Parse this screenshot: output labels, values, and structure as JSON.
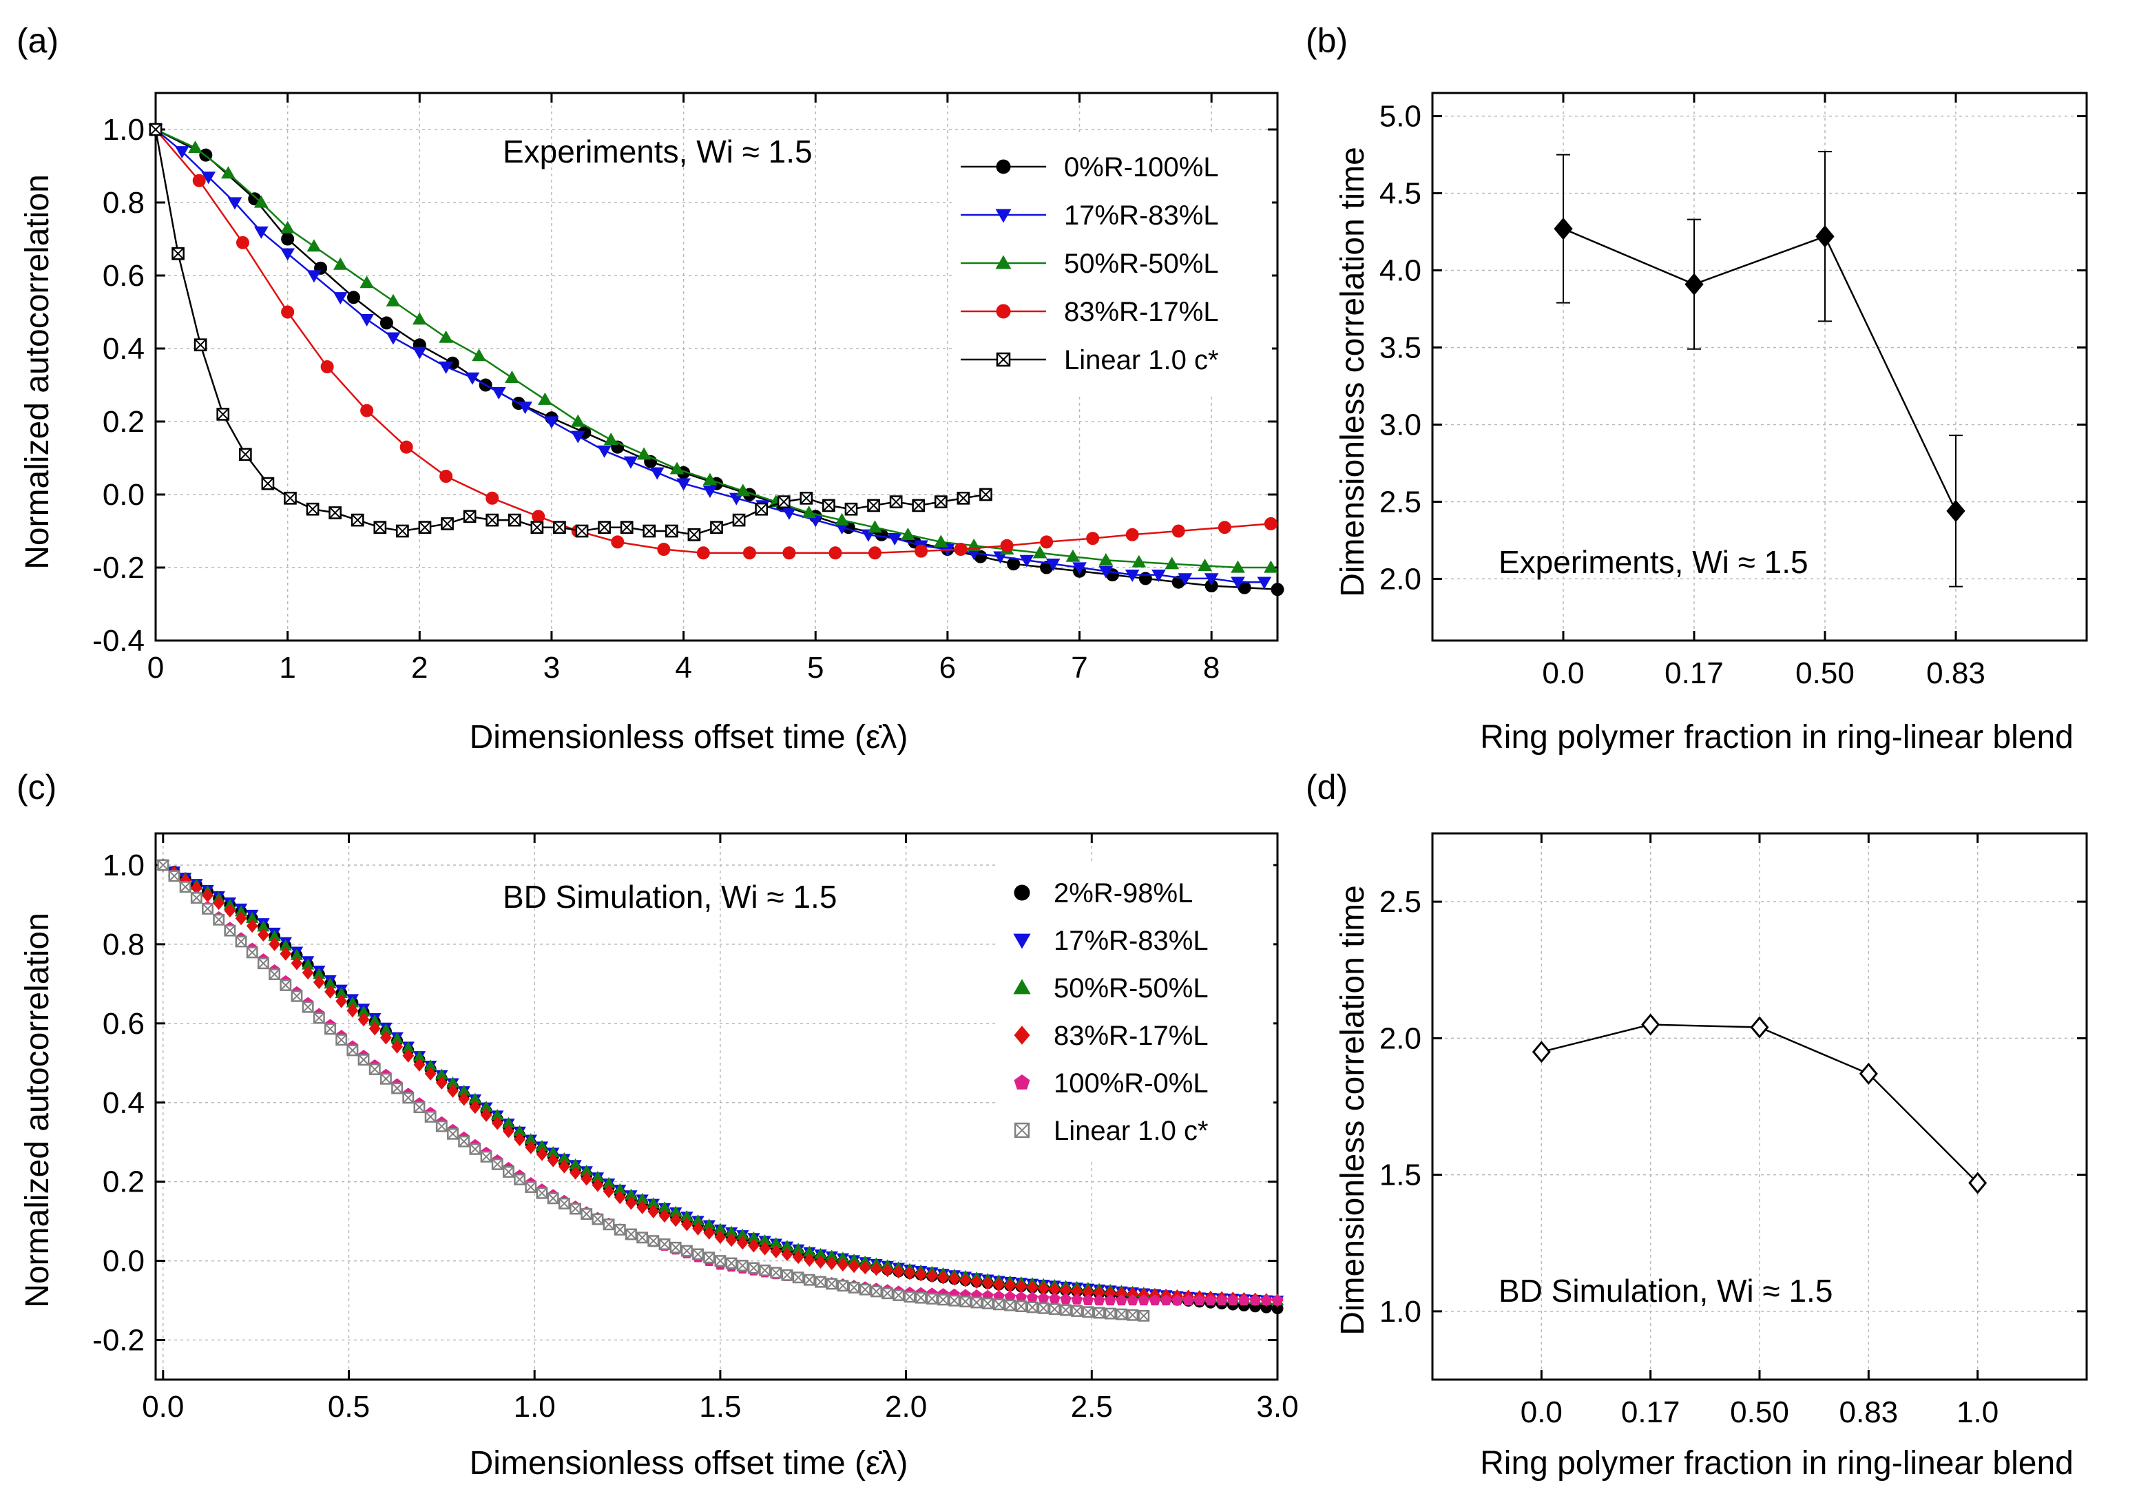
{
  "chart_data": [
    {
      "id": "a",
      "type": "line",
      "panel_label": "(a)",
      "annotation": "Experiments, Wi ≈ 1.5",
      "xlabel": "Dimensionless offset time (ε̇λ)",
      "ylabel": "Normalized autocorrelation",
      "xlim": [
        0,
        8.5
      ],
      "ylim": [
        -0.4,
        1.1
      ],
      "xticks": [
        0,
        1,
        2,
        3,
        4,
        5,
        6,
        7,
        8
      ],
      "xtick_labels": [
        "0",
        "1",
        "2",
        "3",
        "4",
        "5",
        "6",
        "7",
        "8"
      ],
      "yticks": [
        -0.4,
        -0.2,
        0.0,
        0.2,
        0.4,
        0.6,
        0.8,
        1.0
      ],
      "ytick_labels": [
        "-0.4",
        "-0.2",
        "0.0",
        "0.2",
        "0.4",
        "0.6",
        "0.8",
        "1.0"
      ],
      "grid": true,
      "legend_position": "top-right",
      "series": [
        {
          "name": "0%R-100%L",
          "color": "#000000",
          "marker": "circle",
          "line": true,
          "x": [
            0,
            0.38,
            0.75,
            1.0,
            1.25,
            1.5,
            1.75,
            2.0,
            2.25,
            2.5,
            2.75,
            3.0,
            3.25,
            3.5,
            3.75,
            4.0,
            4.25,
            4.5,
            4.75,
            5.0,
            5.25,
            5.5,
            5.75,
            6.0,
            6.25,
            6.5,
            6.75,
            7.0,
            7.25,
            7.5,
            7.75,
            8.0,
            8.25,
            8.5
          ],
          "y": [
            1.0,
            0.93,
            0.81,
            0.7,
            0.62,
            0.54,
            0.47,
            0.41,
            0.36,
            0.3,
            0.25,
            0.21,
            0.17,
            0.13,
            0.09,
            0.06,
            0.03,
            0.0,
            -0.03,
            -0.06,
            -0.09,
            -0.11,
            -0.13,
            -0.15,
            -0.17,
            -0.19,
            -0.2,
            -0.21,
            -0.22,
            -0.23,
            -0.24,
            -0.25,
            -0.255,
            -0.26
          ]
        },
        {
          "name": "17%R-83%L",
          "color": "#1010e0",
          "marker": "triangle-down",
          "line": true,
          "x": [
            0,
            0.2,
            0.4,
            0.6,
            0.8,
            1.0,
            1.2,
            1.4,
            1.6,
            1.8,
            2.0,
            2.2,
            2.4,
            2.6,
            2.8,
            3.0,
            3.2,
            3.4,
            3.6,
            3.8,
            4.0,
            4.2,
            4.4,
            4.6,
            4.8,
            5.0,
            5.2,
            5.4,
            5.6,
            5.8,
            6.0,
            6.2,
            6.4,
            6.6,
            6.8,
            7.0,
            7.2,
            7.4,
            7.6,
            7.8,
            8.0,
            8.2,
            8.4
          ],
          "y": [
            1.0,
            0.94,
            0.87,
            0.8,
            0.72,
            0.66,
            0.6,
            0.54,
            0.48,
            0.43,
            0.39,
            0.35,
            0.32,
            0.28,
            0.24,
            0.2,
            0.16,
            0.12,
            0.09,
            0.06,
            0.03,
            0.01,
            -0.01,
            -0.03,
            -0.05,
            -0.07,
            -0.09,
            -0.11,
            -0.12,
            -0.14,
            -0.15,
            -0.16,
            -0.17,
            -0.18,
            -0.19,
            -0.2,
            -0.21,
            -0.22,
            -0.22,
            -0.23,
            -0.23,
            -0.24,
            -0.24
          ]
        },
        {
          "name": "50%R-50%L",
          "color": "#108010",
          "marker": "triangle-up",
          "line": true,
          "x": [
            0,
            0.3,
            0.55,
            0.8,
            1.0,
            1.2,
            1.4,
            1.6,
            1.8,
            2.0,
            2.2,
            2.45,
            2.7,
            2.95,
            3.2,
            3.45,
            3.7,
            3.95,
            4.2,
            4.45,
            4.7,
            4.95,
            5.2,
            5.45,
            5.7,
            5.95,
            6.2,
            6.45,
            6.7,
            6.95,
            7.2,
            7.45,
            7.7,
            7.95,
            8.2,
            8.45
          ],
          "y": [
            1.0,
            0.95,
            0.88,
            0.8,
            0.73,
            0.68,
            0.63,
            0.58,
            0.53,
            0.48,
            0.43,
            0.38,
            0.32,
            0.26,
            0.2,
            0.15,
            0.11,
            0.07,
            0.04,
            0.01,
            -0.02,
            -0.05,
            -0.07,
            -0.09,
            -0.11,
            -0.13,
            -0.14,
            -0.15,
            -0.16,
            -0.17,
            -0.18,
            -0.185,
            -0.19,
            -0.195,
            -0.2,
            -0.2
          ]
        },
        {
          "name": "83%R-17%L",
          "color": "#e01010",
          "marker": "circle",
          "line": true,
          "x": [
            0,
            0.33,
            0.66,
            1.0,
            1.3,
            1.6,
            1.9,
            2.2,
            2.55,
            2.9,
            3.2,
            3.5,
            3.85,
            4.15,
            4.5,
            4.8,
            5.15,
            5.45,
            5.8,
            6.1,
            6.45,
            6.75,
            7.1,
            7.4,
            7.75,
            8.1,
            8.45
          ],
          "y": [
            1.0,
            0.86,
            0.69,
            0.5,
            0.35,
            0.23,
            0.13,
            0.05,
            -0.01,
            -0.06,
            -0.1,
            -0.13,
            -0.15,
            -0.16,
            -0.16,
            -0.16,
            -0.16,
            -0.16,
            -0.155,
            -0.15,
            -0.14,
            -0.13,
            -0.12,
            -0.11,
            -0.1,
            -0.09,
            -0.08
          ]
        },
        {
          "name": "Linear 1.0 c*",
          "color": "#000000",
          "marker": "boxed-x",
          "line": true,
          "x": [
            0,
            0.17,
            0.34,
            0.51,
            0.68,
            0.85,
            1.02,
            1.19,
            1.36,
            1.53,
            1.7,
            1.87,
            2.04,
            2.21,
            2.38,
            2.55,
            2.72,
            2.89,
            3.06,
            3.23,
            3.4,
            3.57,
            3.74,
            3.91,
            4.08,
            4.25,
            4.42,
            4.59,
            4.76,
            4.93,
            5.1,
            5.27,
            5.44,
            5.61,
            5.78,
            5.95,
            6.12,
            6.29
          ],
          "y": [
            1.0,
            0.66,
            0.41,
            0.22,
            0.11,
            0.03,
            -0.01,
            -0.04,
            -0.05,
            -0.07,
            -0.09,
            -0.1,
            -0.09,
            -0.08,
            -0.06,
            -0.07,
            -0.07,
            -0.09,
            -0.09,
            -0.1,
            -0.09,
            -0.09,
            -0.1,
            -0.1,
            -0.11,
            -0.09,
            -0.07,
            -0.04,
            -0.02,
            -0.01,
            -0.03,
            -0.04,
            -0.03,
            -0.02,
            -0.03,
            -0.02,
            -0.01,
            0.0
          ]
        }
      ]
    },
    {
      "id": "b",
      "type": "line",
      "panel_label": "(b)",
      "annotation": "Experiments, Wi ≈ 1.5",
      "xlabel": "Ring polymer fraction in ring-linear blend",
      "ylabel": "Dimensionless correlation time",
      "categories": [
        "0.0",
        "0.17",
        "0.50",
        "0.83"
      ],
      "ylim": [
        1.6,
        5.15
      ],
      "yticks": [
        2.0,
        2.5,
        3.0,
        3.5,
        4.0,
        4.5,
        5.0
      ],
      "ytick_labels": [
        "2.0",
        "2.5",
        "3.0",
        "3.5",
        "4.0",
        "4.5",
        "5.0"
      ],
      "grid": true,
      "series": [
        {
          "name": "Experiments",
          "color": "#000000",
          "marker": "filled-diamond",
          "values": [
            4.27,
            3.91,
            4.22,
            2.44
          ],
          "errors": [
            0.48,
            0.42,
            0.55,
            0.49
          ]
        }
      ]
    },
    {
      "id": "c",
      "type": "scatter",
      "panel_label": "(c)",
      "annotation": "BD Simulation, Wi ≈ 1.5",
      "xlabel": "Dimensionless offset time (ε̇λ)",
      "ylabel": "Normalized autocorrelation",
      "xlim": [
        -0.02,
        3.0
      ],
      "ylim": [
        -0.3,
        1.08
      ],
      "xticks": [
        0.0,
        0.5,
        1.0,
        1.5,
        2.0,
        2.5,
        3.0
      ],
      "xtick_labels": [
        "0.0",
        "0.5",
        "1.0",
        "1.5",
        "2.0",
        "2.5",
        "3.0"
      ],
      "yticks": [
        -0.2,
        0.0,
        0.2,
        0.4,
        0.6,
        0.8,
        1.0
      ],
      "ytick_labels": [
        "-0.2",
        "0.0",
        "0.2",
        "0.4",
        "0.6",
        "0.8",
        "1.0"
      ],
      "grid": true,
      "legend_position": "top-right",
      "series": [
        {
          "name": "2%R-98%L",
          "color": "#000000",
          "marker": "circle",
          "x": [
            0.0,
            0.25,
            0.5,
            0.75,
            1.0,
            1.25,
            1.5,
            1.75,
            2.0,
            2.25,
            2.5,
            2.75,
            3.0
          ],
          "y": [
            1.0,
            0.86,
            0.66,
            0.46,
            0.29,
            0.16,
            0.07,
            0.01,
            -0.03,
            -0.06,
            -0.08,
            -0.1,
            -0.12
          ]
        },
        {
          "name": "17%R-83%L",
          "color": "#1010e0",
          "marker": "triangle-down",
          "x": [
            0.0,
            0.25,
            0.5,
            0.75,
            1.0,
            1.25,
            1.5,
            1.75,
            2.0,
            2.25,
            2.5,
            2.75,
            3.0
          ],
          "y": [
            1.0,
            0.87,
            0.67,
            0.47,
            0.3,
            0.17,
            0.08,
            0.02,
            -0.02,
            -0.05,
            -0.07,
            -0.09,
            -0.1
          ]
        },
        {
          "name": "50%R-50%L",
          "color": "#108010",
          "marker": "triangle-up",
          "x": [
            0.0,
            0.25,
            0.5,
            0.75,
            1.0,
            1.25,
            1.5,
            1.75,
            2.0,
            2.25,
            2.5,
            2.75,
            3.0
          ],
          "y": [
            1.0,
            0.86,
            0.66,
            0.47,
            0.3,
            0.17,
            0.08,
            0.02,
            -0.02,
            -0.05,
            -0.07,
            -0.09,
            -0.1
          ]
        },
        {
          "name": "83%R-17%L",
          "color": "#e01010",
          "marker": "diamond",
          "x": [
            0.0,
            0.25,
            0.5,
            0.75,
            1.0,
            1.25,
            1.5,
            1.75,
            2.0,
            2.25,
            2.5,
            2.75,
            3.0
          ],
          "y": [
            1.0,
            0.84,
            0.64,
            0.45,
            0.28,
            0.15,
            0.06,
            0.0,
            -0.03,
            -0.06,
            -0.08,
            -0.09,
            -0.1
          ]
        },
        {
          "name": "100%R-0%L",
          "color": "#e0208a",
          "marker": "pentagon",
          "x": [
            0.0,
            0.25,
            0.5,
            0.75,
            1.0,
            1.25,
            1.5,
            1.75,
            2.0,
            2.25,
            2.5,
            2.75,
            3.0
          ],
          "y": [
            1.0,
            0.78,
            0.55,
            0.35,
            0.19,
            0.07,
            -0.01,
            -0.05,
            -0.08,
            -0.09,
            -0.1,
            -0.1,
            -0.1
          ]
        },
        {
          "name": "Linear 1.0 c*",
          "color": "#808080",
          "marker": "boxed-x",
          "x": [
            0.0,
            0.25,
            0.5,
            0.75,
            1.0,
            1.25,
            1.5,
            1.75,
            2.0,
            2.25,
            2.5,
            2.66
          ],
          "y": [
            1.0,
            0.77,
            0.54,
            0.34,
            0.18,
            0.07,
            0.0,
            -0.05,
            -0.09,
            -0.11,
            -0.13,
            -0.14
          ]
        }
      ]
    },
    {
      "id": "d",
      "type": "line",
      "panel_label": "(d)",
      "annotation": "BD Simulation, Wi ≈ 1.5",
      "xlabel": "Ring polymer fraction in ring-linear blend",
      "ylabel": "Dimensionless correlation time",
      "categories": [
        "0.0",
        "0.17",
        "0.50",
        "0.83",
        "1.0"
      ],
      "ylim": [
        0.75,
        2.75
      ],
      "yticks": [
        1.0,
        1.5,
        2.0,
        2.5
      ],
      "ytick_labels": [
        "1.0",
        "1.5",
        "2.0",
        "2.5"
      ],
      "grid": true,
      "series": [
        {
          "name": "BD Simulation",
          "color": "#000000",
          "marker": "open-diamond",
          "values": [
            1.95,
            2.05,
            2.04,
            1.87,
            1.47
          ]
        }
      ]
    }
  ]
}
